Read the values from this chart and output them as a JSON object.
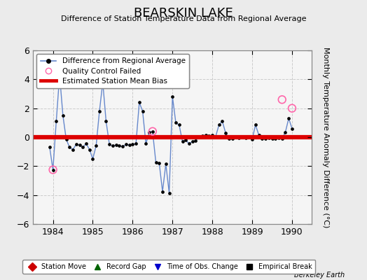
{
  "title": "BEARSKIN LAKE",
  "subtitle": "Difference of Station Temperature Data from Regional Average",
  "ylabel": "Monthly Temperature Anomaly Difference (°C)",
  "credit": "Berkeley Earth",
  "xlim": [
    1983.5,
    1990.5
  ],
  "ylim": [
    -6,
    6
  ],
  "yticks": [
    -6,
    -4,
    -2,
    0,
    2,
    4,
    6
  ],
  "xticks": [
    1984,
    1985,
    1986,
    1987,
    1988,
    1989,
    1990
  ],
  "bg_color": "#ebebeb",
  "plot_bg_color": "#f5f5f5",
  "line_color": "#6688cc",
  "line_marker_color": "#000000",
  "bias_color": "#dd0000",
  "qc_color": "#ff66aa",
  "bias_y": 0.0,
  "time_series": [
    [
      1983.917,
      -0.7
    ],
    [
      1984.0,
      -2.25
    ],
    [
      1984.083,
      1.1
    ],
    [
      1984.167,
      4.3
    ],
    [
      1984.25,
      1.5
    ],
    [
      1984.333,
      -0.15
    ],
    [
      1984.417,
      -0.7
    ],
    [
      1984.5,
      -0.85
    ],
    [
      1984.583,
      -0.5
    ],
    [
      1984.667,
      -0.55
    ],
    [
      1984.75,
      -0.7
    ],
    [
      1984.833,
      -0.45
    ],
    [
      1984.917,
      -0.85
    ],
    [
      1985.0,
      -1.5
    ],
    [
      1985.083,
      -0.6
    ],
    [
      1985.167,
      1.8
    ],
    [
      1985.25,
      3.8
    ],
    [
      1985.333,
      1.1
    ],
    [
      1985.417,
      -0.5
    ],
    [
      1985.5,
      -0.6
    ],
    [
      1985.583,
      -0.55
    ],
    [
      1985.667,
      -0.6
    ],
    [
      1985.75,
      -0.65
    ],
    [
      1985.833,
      -0.5
    ],
    [
      1985.917,
      -0.55
    ],
    [
      1986.0,
      -0.5
    ],
    [
      1986.083,
      -0.45
    ],
    [
      1986.167,
      2.4
    ],
    [
      1986.25,
      1.8
    ],
    [
      1986.333,
      -0.45
    ],
    [
      1986.417,
      0.35
    ],
    [
      1986.5,
      0.4
    ],
    [
      1986.583,
      -1.75
    ],
    [
      1986.667,
      -1.8
    ],
    [
      1986.75,
      -3.75
    ],
    [
      1986.833,
      -1.85
    ],
    [
      1986.917,
      -3.85
    ],
    [
      1987.0,
      2.8
    ],
    [
      1987.083,
      1.0
    ],
    [
      1987.167,
      0.85
    ],
    [
      1987.25,
      -0.3
    ],
    [
      1987.333,
      -0.2
    ],
    [
      1987.417,
      -0.45
    ],
    [
      1987.5,
      -0.3
    ],
    [
      1987.583,
      -0.25
    ],
    [
      1987.667,
      0.05
    ],
    [
      1987.75,
      0.1
    ],
    [
      1987.833,
      0.15
    ],
    [
      1987.917,
      0.1
    ],
    [
      1988.0,
      0.15
    ],
    [
      1988.083,
      0.05
    ],
    [
      1988.167,
      0.85
    ],
    [
      1988.25,
      1.1
    ],
    [
      1988.333,
      0.3
    ],
    [
      1988.417,
      -0.1
    ],
    [
      1988.5,
      -0.1
    ],
    [
      1988.583,
      0.0
    ],
    [
      1988.667,
      -0.05
    ],
    [
      1988.75,
      0.05
    ],
    [
      1988.833,
      -0.05
    ],
    [
      1988.917,
      0.05
    ],
    [
      1989.0,
      -0.15
    ],
    [
      1989.083,
      0.85
    ],
    [
      1989.167,
      0.15
    ],
    [
      1989.25,
      -0.1
    ],
    [
      1989.333,
      -0.1
    ],
    [
      1989.417,
      -0.05
    ],
    [
      1989.5,
      -0.1
    ],
    [
      1989.583,
      -0.1
    ],
    [
      1989.667,
      -0.05
    ],
    [
      1989.75,
      -0.1
    ],
    [
      1989.833,
      0.35
    ],
    [
      1989.917,
      1.3
    ],
    [
      1990.0,
      0.6
    ]
  ],
  "qc_points": [
    [
      1984.0,
      -2.25
    ],
    [
      1986.5,
      0.4
    ],
    [
      1989.75,
      2.6
    ],
    [
      1990.0,
      2.0
    ]
  ],
  "legend_bottom": [
    {
      "label": "Station Move",
      "color": "#cc0000",
      "marker": "D"
    },
    {
      "label": "Record Gap",
      "color": "#006400",
      "marker": "^"
    },
    {
      "label": "Time of Obs. Change",
      "color": "#0000cc",
      "marker": "v"
    },
    {
      "label": "Empirical Break",
      "color": "#000000",
      "marker": "s"
    }
  ]
}
